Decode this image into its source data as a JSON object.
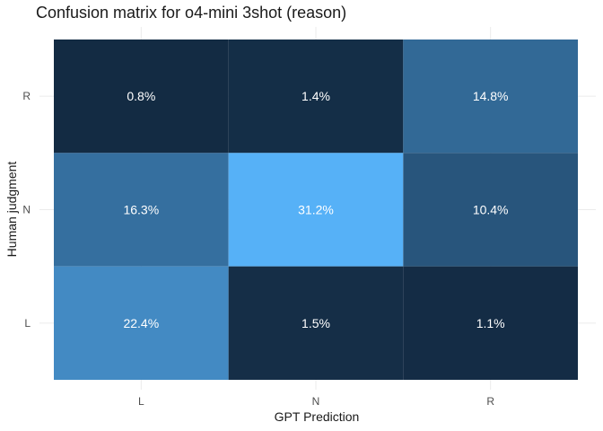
{
  "chart_data": {
    "type": "heatmap",
    "title": "Confusion matrix for o4-mini 3shot (reason)",
    "xlabel": "GPT Prediction",
    "ylabel": "Human judgment",
    "x_categories": [
      "L",
      "N",
      "R"
    ],
    "y_categories": [
      "L",
      "N",
      "R"
    ],
    "cells": [
      {
        "x": "L",
        "y": "R",
        "value": 0.8,
        "label": "0.8%"
      },
      {
        "x": "N",
        "y": "R",
        "value": 1.4,
        "label": "1.4%"
      },
      {
        "x": "R",
        "y": "R",
        "value": 14.8,
        "label": "14.8%"
      },
      {
        "x": "L",
        "y": "N",
        "value": 16.3,
        "label": "16.3%"
      },
      {
        "x": "N",
        "y": "N",
        "value": 31.2,
        "label": "31.2%"
      },
      {
        "x": "R",
        "y": "N",
        "value": 10.4,
        "label": "10.4%"
      },
      {
        "x": "L",
        "y": "L",
        "value": 22.4,
        "label": "22.4%"
      },
      {
        "x": "N",
        "y": "L",
        "value": 1.5,
        "label": "1.5%"
      },
      {
        "x": "R",
        "y": "L",
        "value": 1.1,
        "label": "1.1%"
      }
    ],
    "color_scale": {
      "low": "#132b43",
      "high": "#56b1f7"
    },
    "grid": true,
    "legend": "none"
  }
}
